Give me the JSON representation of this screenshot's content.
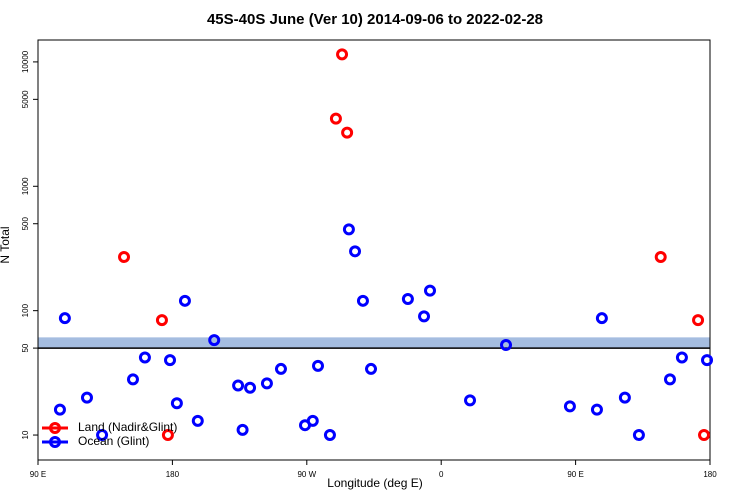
{
  "chart_data": {
    "type": "scatter",
    "title": "45S-40S June (Ver 10)   2014-09-06 to 2022-02-28",
    "x_label": "Longitude (deg E)",
    "y_label": "N Total",
    "xlim": [
      90,
      540
    ],
    "xticks": [
      {
        "value": 90,
        "label": "90 E"
      },
      180,
      {
        "value": 270,
        "label": "90 W"
      },
      {
        "value": 360,
        "label": "0"
      },
      {
        "value": 450,
        "label": "90 E"
      },
      {
        "value": 540,
        "label": "180"
      }
    ],
    "ylim": [
      6.3,
      15000
    ],
    "log_y": true,
    "yticks": [
      10,
      50,
      100,
      500,
      1000,
      5000,
      10000
    ],
    "band": [
      50,
      61
    ],
    "band_color": "#a5bde0",
    "hline": 50,
    "legend": "bottom-left",
    "series": [
      {
        "name": "Land (Nadir&Glint)",
        "color": "#ff0000",
        "x": [
          147.6,
          173,
          177,
          293.6,
          289.5,
          297,
          507,
          532,
          536
        ],
        "values": [
          270,
          84,
          10,
          11500,
          3500,
          2700,
          270,
          84,
          10
        ]
      },
      {
        "name": "Ocean (Glint)",
        "color": "#0000ff",
        "x": [
          108,
          104.7,
          122.8,
          132.9,
          153.6,
          161.6,
          178.4,
          183,
          188.4,
          197,
          208,
          224,
          232,
          227,
          243.3,
          252.7,
          268.8,
          274,
          277.5,
          285.5,
          298.2,
          302.3,
          307.6,
          313,
          337.7,
          348.5,
          352.5,
          379.3,
          403.4,
          446.2,
          464.3,
          467.6,
          483,
          492.4,
          513.2,
          521.2,
          538
        ],
        "values": [
          87,
          16,
          20,
          10,
          28,
          42,
          40,
          18,
          120,
          13,
          58,
          25,
          24,
          11,
          26,
          34,
          12,
          13,
          36,
          10,
          450,
          300,
          120,
          34,
          124,
          90,
          145,
          19,
          53,
          17,
          16,
          87,
          20,
          10,
          28,
          42,
          40
        ]
      }
    ]
  }
}
